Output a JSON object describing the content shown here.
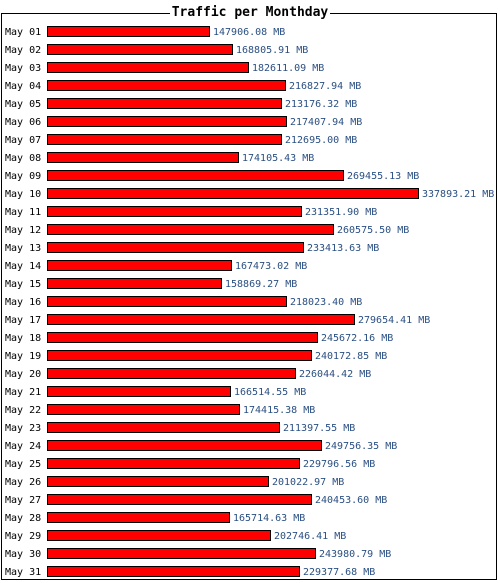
{
  "colors": {
    "bar_fill": "#ff0000",
    "bar_border": "#000000",
    "value_text": "#2a4f82"
  },
  "chart_data": {
    "type": "bar",
    "orientation": "horizontal",
    "title": "Traffic per Monthday",
    "categories": [
      "May 01",
      "May 02",
      "May 03",
      "May 04",
      "May 05",
      "May 06",
      "May 07",
      "May 08",
      "May 09",
      "May 10",
      "May 11",
      "May 12",
      "May 13",
      "May 14",
      "May 15",
      "May 16",
      "May 17",
      "May 18",
      "May 19",
      "May 20",
      "May 21",
      "May 22",
      "May 23",
      "May 24",
      "May 25",
      "May 26",
      "May 27",
      "May 28",
      "May 29",
      "May 30",
      "May 31"
    ],
    "values": [
      147906.08,
      168805.91,
      182611.09,
      216827.94,
      213176.32,
      217407.94,
      212695.0,
      174105.43,
      269455.13,
      337893.21,
      231351.9,
      260575.5,
      233413.63,
      167473.02,
      158869.27,
      218023.4,
      279654.41,
      245672.16,
      240172.85,
      226044.42,
      166514.55,
      174415.38,
      211397.55,
      249756.35,
      229796.56,
      201022.97,
      240453.6,
      165714.63,
      202746.41,
      243980.79,
      229377.68
    ],
    "value_labels": [
      "147906.08 MB",
      "168805.91 MB",
      "182611.09 MB",
      "216827.94 MB",
      "213176.32 MB",
      "217407.94 MB",
      "212695.00 MB",
      "174105.43 MB",
      "269455.13 MB",
      "337893.21 MB",
      "231351.90 MB",
      "260575.50 MB",
      "233413.63 MB",
      "167473.02 MB",
      "158869.27 MB",
      "218023.40 MB",
      "279654.41 MB",
      "245672.16 MB",
      "240172.85 MB",
      "226044.42 MB",
      "166514.55 MB",
      "174415.38 MB",
      "211397.55 MB",
      "249756.35 MB",
      "229796.56 MB",
      "201022.97 MB",
      "240453.60 MB",
      "165714.63 MB",
      "202746.41 MB",
      "243980.79 MB",
      "229377.68 MB"
    ],
    "unit": "MB",
    "grid": false,
    "legend": "none"
  }
}
